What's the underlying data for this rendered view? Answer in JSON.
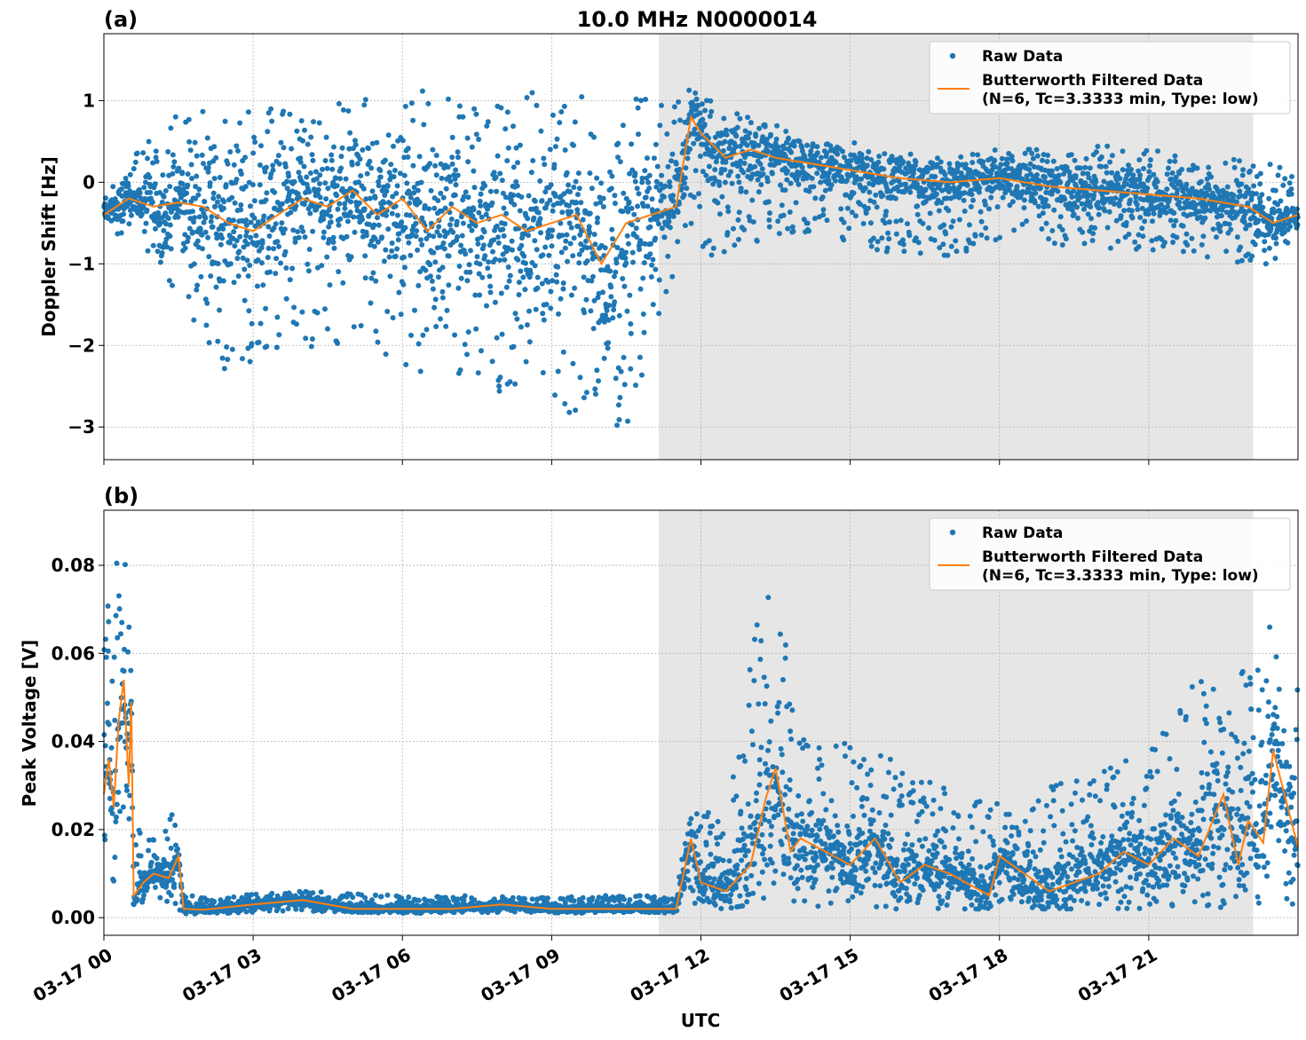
{
  "figure": {
    "title": "10.0 MHz N0000014",
    "xlabel": "UTC",
    "colors": {
      "raw": "#1f77b4",
      "filtered": "#ff7f0e",
      "shade": "#e6e6e6",
      "grid": "#b0b0b0"
    }
  },
  "chart_data": [
    {
      "type": "scatter",
      "panel_label": "(a)",
      "title": "10.0 MHz N0000014",
      "xlabel": "",
      "ylabel": "Doppler Shift [Hz]",
      "x_unit": "hours UTC on 03-17",
      "xlim": [
        0,
        24
      ],
      "ylim": [
        -3.4,
        1.82
      ],
      "x_ticks": [
        0,
        3,
        6,
        9,
        12,
        15,
        18,
        21
      ],
      "y_ticks": [
        1,
        0,
        -1,
        -2,
        -3
      ],
      "y_tick_labels": [
        "1",
        "0",
        "−1",
        "−2",
        "−3"
      ],
      "grid": true,
      "shaded_interval": [
        11.15,
        23.1
      ],
      "legend": {
        "position": "top-right",
        "raw_label": "Raw Data",
        "filtered_label_1": "Butterworth Filtered Data",
        "filtered_label_2": "(N=6, Tc=3.3333 min, Type: low)"
      },
      "series": [
        {
          "name": "Raw Data",
          "kind": "points",
          "envelope_x": [
            0,
            0.6,
            1.6,
            2.5,
            4.0,
            6.0,
            8.0,
            9.5,
            10.5,
            11.2,
            11.75,
            12.2,
            14.0,
            16.0,
            18.0,
            20.0,
            22.0,
            23.1,
            24.0
          ],
          "envelope_low": [
            -0.7,
            -0.6,
            -1.5,
            -2.4,
            -2.0,
            -2.3,
            -2.6,
            -2.9,
            -3.05,
            -1.7,
            -0.6,
            -0.9,
            -0.6,
            -0.9,
            -0.9,
            -0.8,
            -0.9,
            -1.1,
            -0.8
          ],
          "envelope_high": [
            -0.15,
            0.35,
            1.0,
            0.9,
            0.9,
            1.1,
            1.2,
            1.1,
            1.1,
            1.0,
            1.15,
            1.0,
            0.6,
            0.4,
            0.4,
            0.45,
            0.35,
            0.3,
            0.1
          ]
        },
        {
          "name": "Butterworth Filtered Data (N=6, Tc=3.3333 min, Type: low)",
          "kind": "line",
          "x": [
            0,
            0.5,
            1.0,
            1.5,
            2.0,
            2.5,
            3.0,
            3.5,
            4.0,
            4.5,
            5.0,
            5.5,
            6.0,
            6.5,
            7.0,
            7.5,
            8.0,
            8.5,
            9.0,
            9.5,
            10.0,
            10.5,
            11.0,
            11.5,
            11.8,
            12.0,
            12.5,
            13.0,
            13.5,
            14.0,
            15.0,
            16.0,
            17.0,
            18.0,
            19.0,
            20.0,
            21.0,
            22.0,
            23.0,
            23.5,
            24.0
          ],
          "y": [
            -0.4,
            -0.2,
            -0.3,
            -0.25,
            -0.3,
            -0.5,
            -0.6,
            -0.4,
            -0.2,
            -0.3,
            -0.1,
            -0.4,
            -0.2,
            -0.6,
            -0.3,
            -0.5,
            -0.4,
            -0.6,
            -0.5,
            -0.4,
            -1.0,
            -0.5,
            -0.4,
            -0.3,
            0.8,
            0.6,
            0.3,
            0.4,
            0.3,
            0.25,
            0.15,
            0.05,
            0.0,
            0.05,
            -0.05,
            -0.1,
            -0.15,
            -0.2,
            -0.3,
            -0.5,
            -0.4
          ]
        }
      ]
    },
    {
      "type": "scatter",
      "panel_label": "(b)",
      "xlabel": "UTC",
      "ylabel": "Peak Voltage [V]",
      "x_unit": "hours UTC on 03-17",
      "xlim": [
        0,
        24
      ],
      "ylim": [
        -0.004,
        0.0925
      ],
      "x_ticks": [
        0,
        3,
        6,
        9,
        12,
        15,
        18,
        21
      ],
      "x_tick_labels": [
        "03-17 00",
        "03-17 03",
        "03-17 06",
        "03-17 09",
        "03-17 12",
        "03-17 15",
        "03-17 18",
        "03-17 21"
      ],
      "y_ticks": [
        0.08,
        0.06,
        0.04,
        0.02,
        0.0
      ],
      "y_tick_labels": [
        "0.08",
        "0.06",
        "0.04",
        "0.02",
        "0.00"
      ],
      "grid": true,
      "shaded_interval": [
        11.15,
        23.1
      ],
      "legend": {
        "position": "top-right",
        "raw_label": "Raw Data",
        "filtered_label_1": "Butterworth Filtered Data",
        "filtered_label_2": "(N=6, Tc=3.3333 min, Type: low)"
      },
      "series": [
        {
          "name": "Raw Data",
          "kind": "points",
          "envelope_x": [
            0,
            0.3,
            0.5,
            0.6,
            1.0,
            1.4,
            1.6,
            2.5,
            4.0,
            6.0,
            8.0,
            10.0,
            11.5,
            11.8,
            12.5,
            13.0,
            13.5,
            14.0,
            15.0,
            16.0,
            17.0,
            18.0,
            19.0,
            20.0,
            21.0,
            22.0,
            23.0,
            24.0
          ],
          "envelope_low": [
            0.005,
            0.005,
            0.004,
            0.003,
            0.003,
            0.003,
            0.0008,
            0.001,
            0.0015,
            0.001,
            0.0012,
            0.001,
            0.001,
            0.002,
            0.002,
            0.003,
            0.003,
            0.002,
            0.002,
            0.002,
            0.002,
            0.002,
            0.002,
            0.002,
            0.002,
            0.002,
            0.002,
            0.003
          ],
          "envelope_high": [
            0.074,
            0.088,
            0.081,
            0.02,
            0.022,
            0.025,
            0.005,
            0.005,
            0.006,
            0.005,
            0.005,
            0.005,
            0.005,
            0.028,
            0.02,
            0.064,
            0.077,
            0.046,
            0.04,
            0.035,
            0.03,
            0.026,
            0.03,
            0.033,
            0.038,
            0.055,
            0.06,
            0.075
          ]
        },
        {
          "name": "Butterworth Filtered Data (N=6, Tc=3.3333 min, Type: low)",
          "kind": "line",
          "x": [
            0,
            0.1,
            0.2,
            0.3,
            0.4,
            0.5,
            0.55,
            0.6,
            0.8,
            1.0,
            1.3,
            1.5,
            1.6,
            2.0,
            3.0,
            4.0,
            5.0,
            6.0,
            7.0,
            8.0,
            9.0,
            10.0,
            11.0,
            11.5,
            11.8,
            12.0,
            12.5,
            13.0,
            13.3,
            13.5,
            13.8,
            14.0,
            15.0,
            15.5,
            16.0,
            16.5,
            17.0,
            17.8,
            18.0,
            19.0,
            20.0,
            20.5,
            21.0,
            21.5,
            22.0,
            22.5,
            22.8,
            23.0,
            23.3,
            23.5,
            24.0
          ],
          "y": [
            0.028,
            0.036,
            0.025,
            0.045,
            0.054,
            0.03,
            0.049,
            0.005,
            0.008,
            0.01,
            0.009,
            0.014,
            0.002,
            0.0018,
            0.003,
            0.004,
            0.002,
            0.002,
            0.002,
            0.003,
            0.002,
            0.002,
            0.002,
            0.002,
            0.018,
            0.008,
            0.006,
            0.012,
            0.027,
            0.034,
            0.015,
            0.018,
            0.012,
            0.018,
            0.008,
            0.012,
            0.01,
            0.005,
            0.014,
            0.006,
            0.01,
            0.015,
            0.012,
            0.018,
            0.014,
            0.028,
            0.012,
            0.022,
            0.017,
            0.038,
            0.016
          ]
        }
      ]
    }
  ]
}
